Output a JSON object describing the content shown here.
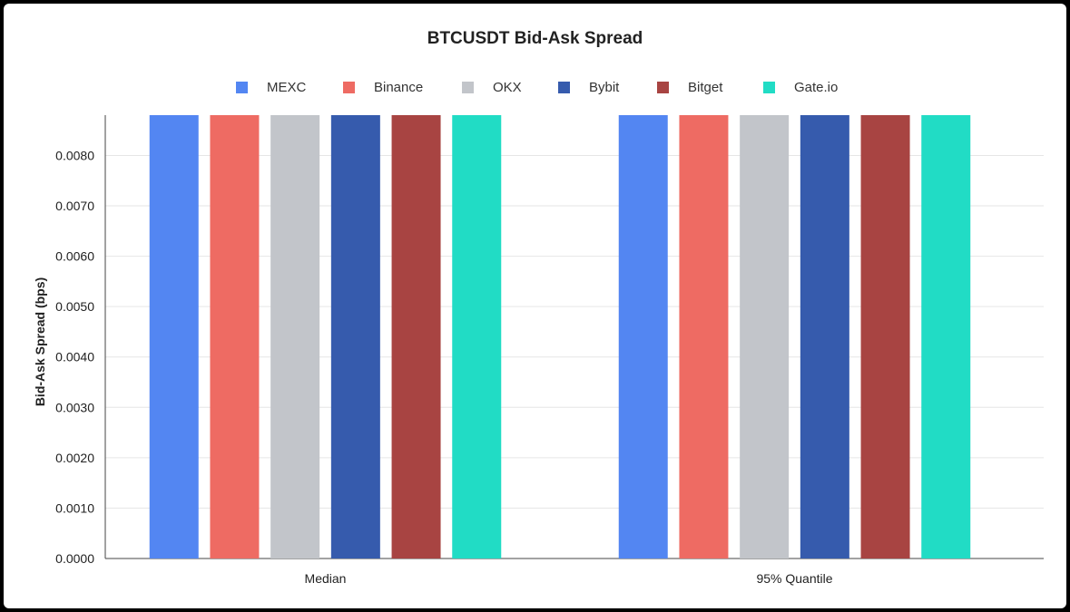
{
  "chart_data": {
    "type": "bar",
    "title": "BTCUSDT Bid-Ask Spread",
    "ylabel": "Bid-Ask Spread (bps)",
    "xlabel": "",
    "categories": [
      "Median",
      "95% Quantile"
    ],
    "ylim": [
      0,
      0.0088
    ],
    "yticks": [
      "0.0000",
      "0.0010",
      "0.0020",
      "0.0030",
      "0.0040",
      "0.0050",
      "0.0060",
      "0.0070",
      "0.0080"
    ],
    "legend_position": "top-center",
    "grid": true,
    "series": [
      {
        "name": "MEXC",
        "color": "#5386f2",
        "values": [
          0.0088,
          0.0088
        ]
      },
      {
        "name": "Binance",
        "color": "#ee6b63",
        "values": [
          0.0088,
          0.0088
        ]
      },
      {
        "name": "OKX",
        "color": "#c2c5ca",
        "values": [
          0.0088,
          0.0088
        ]
      },
      {
        "name": "Bybit",
        "color": "#365bad",
        "values": [
          0.0088,
          0.0088
        ]
      },
      {
        "name": "Bitget",
        "color": "#a84442",
        "values": [
          0.0088,
          0.0088
        ]
      },
      {
        "name": "Gate.io",
        "color": "#21dcc5",
        "values": [
          0.0088,
          0.0088
        ]
      }
    ]
  }
}
